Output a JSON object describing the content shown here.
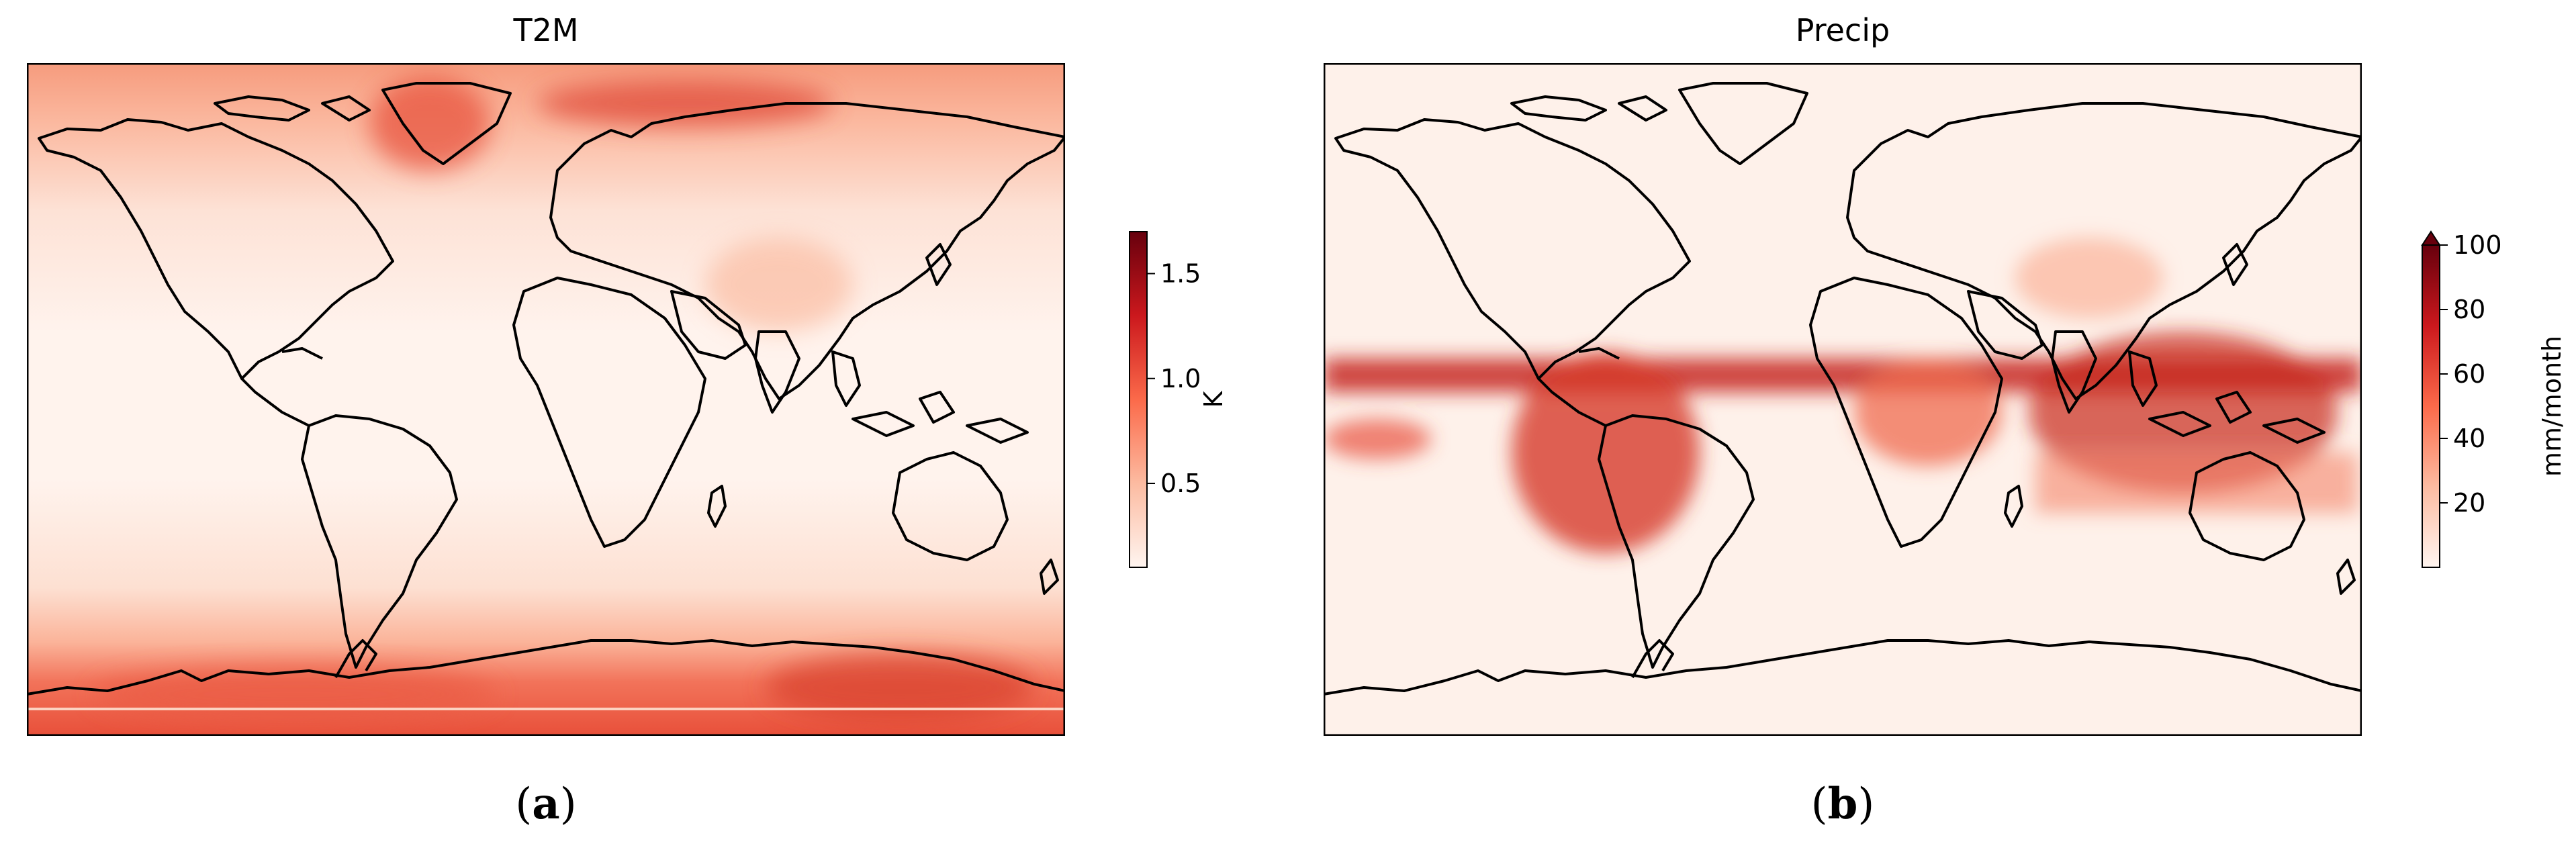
{
  "figure": {
    "panels": [
      {
        "id": "a",
        "title": "T2M",
        "sublabel_paren_open": "(",
        "sublabel_letter": "a",
        "sublabel_paren_close": ")",
        "colorbar": {
          "label": "K",
          "min": 0.1,
          "max": 1.7,
          "ticks": [
            0.5,
            1.0,
            1.5
          ],
          "tick_labels": [
            "0.5",
            "1.0",
            "1.5"
          ],
          "extend_max": false,
          "colormap": "Reds",
          "colors": [
            "#fff5f0",
            "#fcbba1",
            "#fb6a4a",
            "#cb181d",
            "#67000d"
          ]
        }
      },
      {
        "id": "b",
        "title": "Precip",
        "sublabel_paren_open": "(",
        "sublabel_letter": "b",
        "sublabel_paren_close": ")",
        "colorbar": {
          "label": "mm/month",
          "min": 0,
          "max": 100,
          "ticks": [
            20,
            40,
            60,
            80,
            100
          ],
          "tick_labels": [
            "20",
            "40",
            "60",
            "80",
            "100"
          ],
          "extend_max": true,
          "colormap": "Reds",
          "colors": [
            "#fff5f0",
            "#fcbba1",
            "#fb6a4a",
            "#cb181d",
            "#67000d"
          ]
        }
      }
    ]
  }
}
